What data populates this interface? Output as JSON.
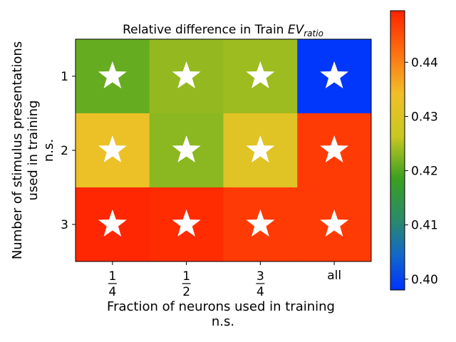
{
  "chart_data": {
    "type": "heatmap",
    "title_main": "Relative difference in Train ",
    "title_var": "EV",
    "title_sub": "ratio",
    "xlabel": "Fraction of neurons used in training",
    "xlabel_note": "n.s.",
    "ylabel_lines": [
      "Number of stimulus presentations",
      "used in training",
      "n.s."
    ],
    "x_ticks": [
      {
        "type": "fraction",
        "num": "1",
        "den": "4"
      },
      {
        "type": "fraction",
        "num": "1",
        "den": "2"
      },
      {
        "type": "fraction",
        "num": "3",
        "den": "4"
      },
      {
        "type": "text",
        "label": "all"
      }
    ],
    "y_ticks": [
      "1",
      "2",
      "3"
    ],
    "values": [
      [
        0.421,
        0.4235,
        0.424,
        0.3985
      ],
      [
        0.433,
        0.423,
        0.431,
        0.447
      ],
      [
        0.449,
        0.4485,
        0.447,
        0.447
      ]
    ],
    "significance": [
      [
        true,
        true,
        true,
        true
      ],
      [
        true,
        true,
        true,
        true
      ],
      [
        true,
        true,
        true,
        true
      ]
    ],
    "colorbar": {
      "vmin": 0.398,
      "vmax": 0.4495,
      "ticks": [
        0.4,
        0.41,
        0.42,
        0.43,
        0.44
      ],
      "tick_labels": [
        "0.40",
        "0.41",
        "0.42",
        "0.43",
        "0.44"
      ]
    },
    "colormap": [
      {
        "v": 0.0,
        "c": "#0033ff"
      },
      {
        "v": 0.12,
        "c": "#1166cc"
      },
      {
        "v": 0.25,
        "c": "#2a8a6a"
      },
      {
        "v": 0.4,
        "c": "#3aa020"
      },
      {
        "v": 0.55,
        "c": "#c8c820"
      },
      {
        "v": 0.7,
        "c": "#f0c028"
      },
      {
        "v": 0.85,
        "c": "#ff7010"
      },
      {
        "v": 1.0,
        "c": "#ff2200"
      }
    ],
    "marker": {
      "symbol": "star",
      "color": "#ffffff"
    }
  }
}
